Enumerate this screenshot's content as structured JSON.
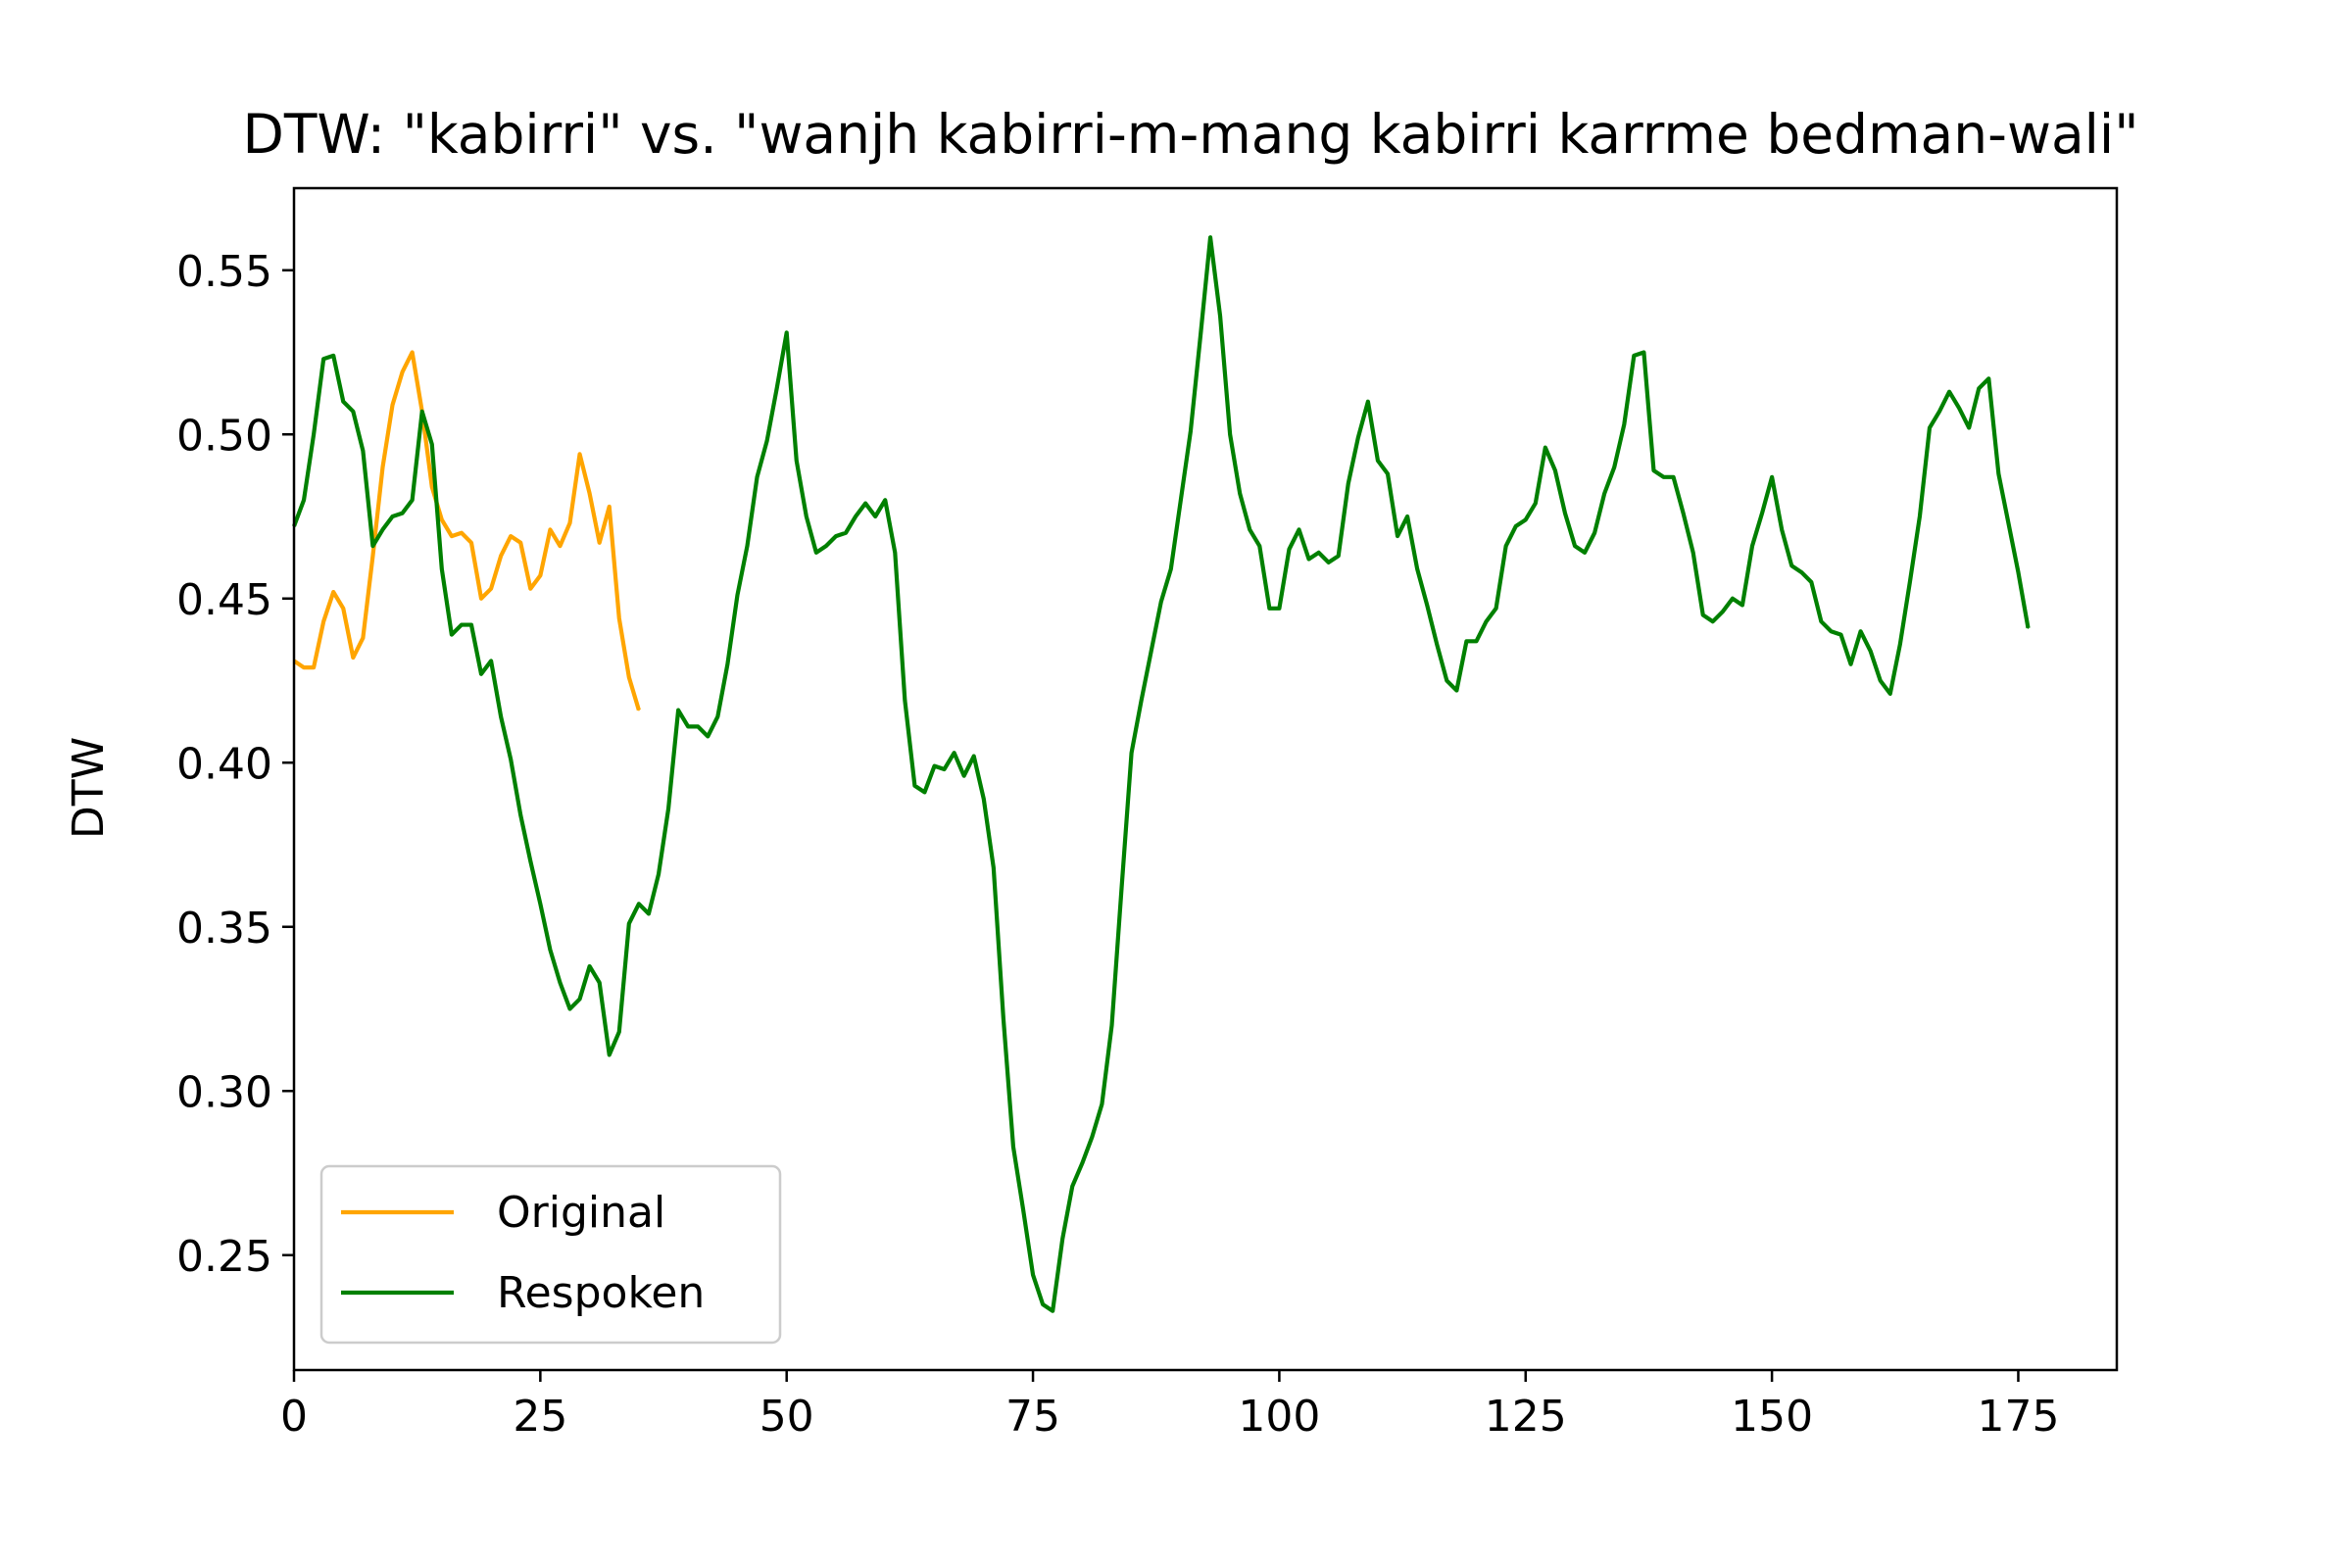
{
  "chart_data": {
    "type": "line",
    "title": "DTW: \"kabirri\" vs. \"wanjh kabirri-m-mang kabirri karrme bedman-wali\"",
    "xlabel": "",
    "ylabel": "DTW",
    "xlim": [
      0,
      185
    ],
    "ylim": [
      0.215,
      0.575
    ],
    "xticks": [
      0,
      25,
      50,
      75,
      100,
      125,
      150,
      175
    ],
    "yticks": [
      0.25,
      0.3,
      0.35,
      0.4,
      0.45,
      0.5,
      0.55
    ],
    "xtick_labels": [
      "0",
      "25",
      "50",
      "75",
      "100",
      "125",
      "150",
      "175"
    ],
    "ytick_labels": [
      "0.25",
      "0.30",
      "0.35",
      "0.40",
      "0.45",
      "0.50",
      "0.55"
    ],
    "grid": false,
    "legend_position": "lower-left",
    "series": [
      {
        "name": "Original",
        "color": "#ffa500",
        "x_start": 0,
        "values": [
          0.431,
          0.429,
          0.429,
          0.443,
          0.452,
          0.447,
          0.432,
          0.438,
          0.463,
          0.49,
          0.509,
          0.519,
          0.525,
          0.507,
          0.484,
          0.474,
          0.469,
          0.47,
          0.467,
          0.45,
          0.453,
          0.463,
          0.469,
          0.467,
          0.453,
          0.457,
          0.471,
          0.466,
          0.473,
          0.494,
          0.482,
          0.467,
          0.478,
          0.444,
          0.426,
          0.416
        ]
      },
      {
        "name": "Respoken",
        "color": "#008000",
        "x_start": 0,
        "values": [
          0.472,
          0.48,
          0.5,
          0.523,
          0.524,
          0.51,
          0.507,
          0.495,
          0.466,
          0.471,
          0.475,
          0.476,
          0.48,
          0.507,
          0.497,
          0.459,
          0.439,
          0.442,
          0.442,
          0.427,
          0.431,
          0.414,
          0.401,
          0.384,
          0.37,
          0.357,
          0.343,
          0.333,
          0.325,
          0.328,
          0.338,
          0.333,
          0.311,
          0.318,
          0.351,
          0.357,
          0.354,
          0.366,
          0.386,
          0.416,
          0.411,
          0.411,
          0.408,
          0.414,
          0.43,
          0.451,
          0.466,
          0.487,
          0.498,
          0.514,
          0.531,
          0.492,
          0.475,
          0.464,
          0.466,
          0.469,
          0.47,
          0.475,
          0.479,
          0.475,
          0.48,
          0.464,
          0.419,
          0.393,
          0.391,
          0.399,
          0.398,
          0.403,
          0.396,
          0.402,
          0.389,
          0.368,
          0.322,
          0.283,
          0.264,
          0.244,
          0.235,
          0.233,
          0.255,
          0.271,
          0.278,
          0.286,
          0.296,
          0.32,
          0.362,
          0.403,
          0.419,
          0.434,
          0.449,
          0.459,
          0.48,
          0.501,
          0.53,
          0.56,
          0.536,
          0.5,
          0.482,
          0.471,
          0.466,
          0.447,
          0.447,
          0.465,
          0.471,
          0.462,
          0.464,
          0.461,
          0.463,
          0.485,
          0.499,
          0.51,
          0.492,
          0.488,
          0.469,
          0.475,
          0.459,
          0.448,
          0.436,
          0.425,
          0.422,
          0.437,
          0.437,
          0.443,
          0.447,
          0.466,
          0.472,
          0.474,
          0.479,
          0.496,
          0.489,
          0.476,
          0.466,
          0.464,
          0.47,
          0.482,
          0.49,
          0.503,
          0.524,
          0.525,
          0.489,
          0.487,
          0.487,
          0.476,
          0.464,
          0.445,
          0.443,
          0.446,
          0.45,
          0.448,
          0.466,
          0.476,
          0.487,
          0.471,
          0.46,
          0.458,
          0.455,
          0.443,
          0.44,
          0.439,
          0.43,
          0.44,
          0.434,
          0.425,
          0.421,
          0.436,
          0.455,
          0.475,
          0.502,
          0.507,
          0.513,
          0.508,
          0.502,
          0.514,
          0.517,
          0.488,
          0.473,
          0.458,
          0.441
        ]
      }
    ]
  }
}
